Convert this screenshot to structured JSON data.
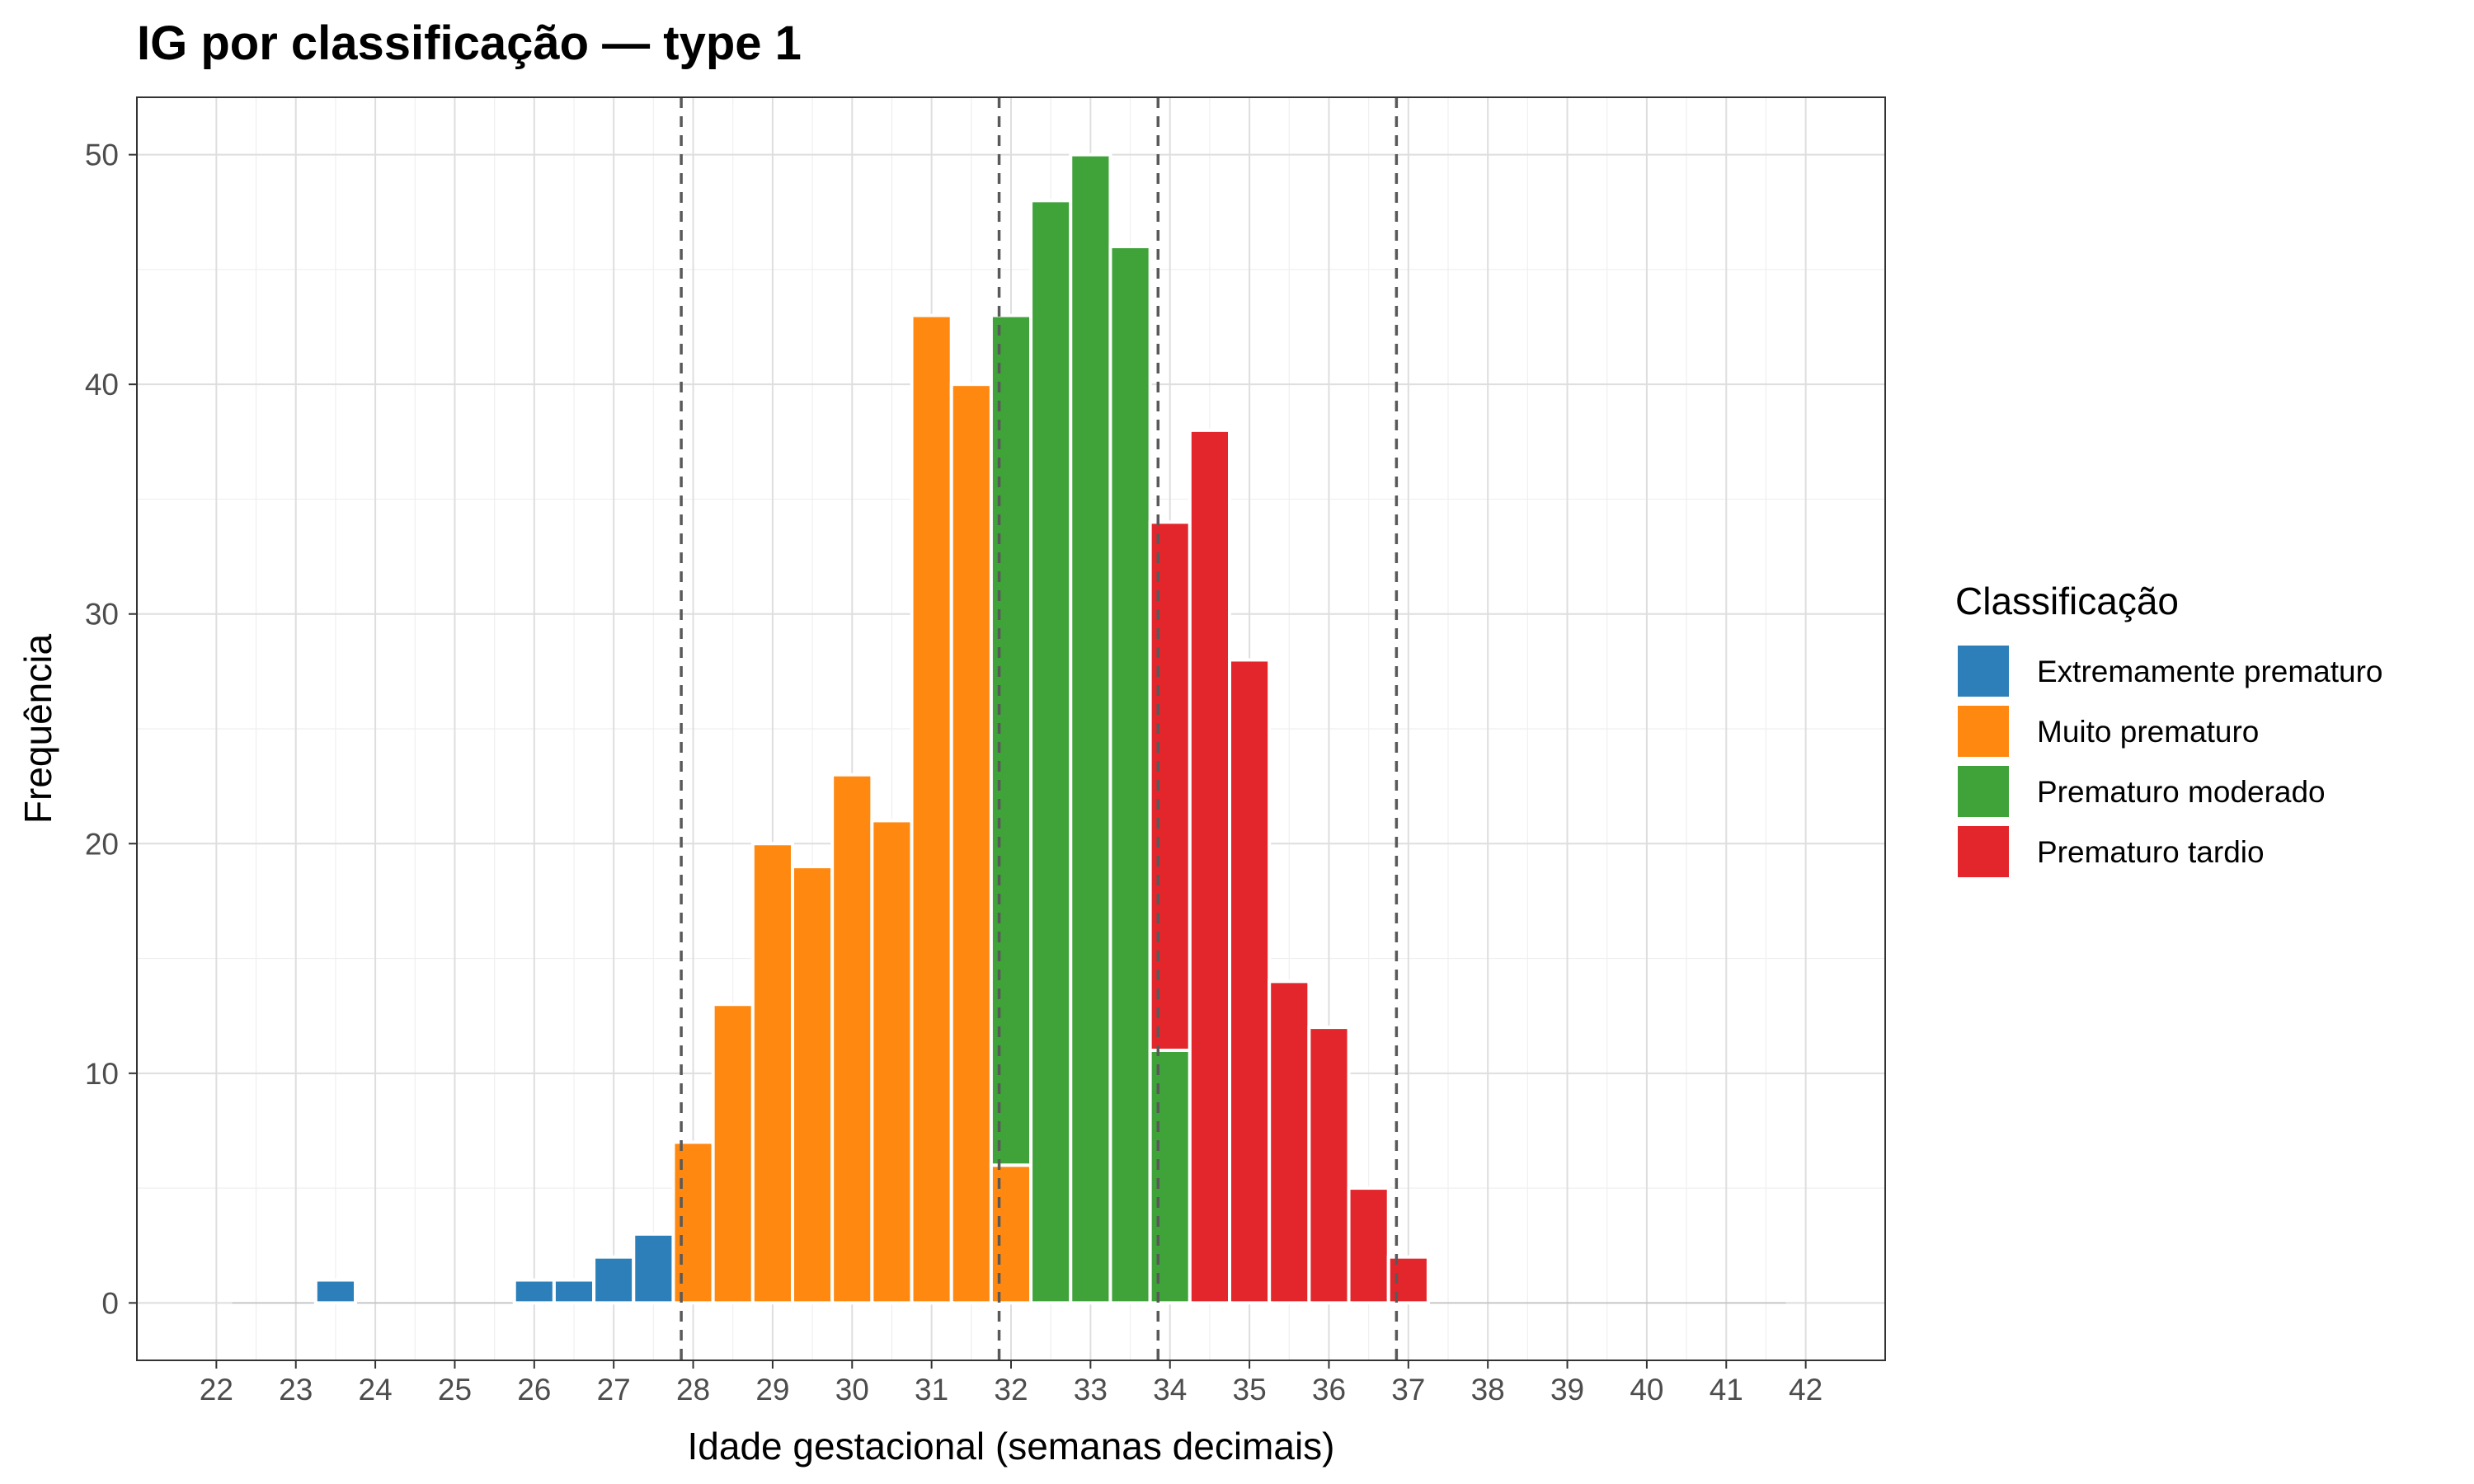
{
  "chart_data": {
    "type": "bar",
    "subtype": "stacked-histogram",
    "title": "IG por classificação — type 1",
    "xlabel": "Idade gestacional (semanas decimais)",
    "ylabel": "Frequência",
    "xlim": [
      21,
      43
    ],
    "ylim": [
      -2.5,
      52.5
    ],
    "x_ticks": [
      22,
      23,
      24,
      25,
      26,
      27,
      28,
      29,
      30,
      31,
      32,
      33,
      34,
      35,
      36,
      37,
      38,
      39,
      40,
      41,
      42
    ],
    "y_ticks": [
      0,
      10,
      20,
      30,
      40,
      50
    ],
    "grid": true,
    "legend_position": "right",
    "legend_title": "Classificação",
    "bin_width": 0.5,
    "reference_lines": [
      27.85,
      31.85,
      33.85,
      36.85
    ],
    "series": [
      {
        "name": "Extremamente prematuro",
        "color": "#2C7FB8",
        "bins": [
          {
            "x0": 23.25,
            "x1": 23.75,
            "value": 1
          },
          {
            "x0": 25.75,
            "x1": 26.25,
            "value": 1
          },
          {
            "x0": 26.25,
            "x1": 26.75,
            "value": 1
          },
          {
            "x0": 26.75,
            "x1": 27.25,
            "value": 2
          },
          {
            "x0": 27.25,
            "x1": 27.75,
            "value": 3
          }
        ]
      },
      {
        "name": "Muito prematuro",
        "color": "#FF8811",
        "bins": [
          {
            "x0": 27.75,
            "x1": 28.25,
            "value": 7
          },
          {
            "x0": 28.25,
            "x1": 28.75,
            "value": 13
          },
          {
            "x0": 28.75,
            "x1": 29.25,
            "value": 20
          },
          {
            "x0": 29.25,
            "x1": 29.75,
            "value": 19
          },
          {
            "x0": 29.75,
            "x1": 30.25,
            "value": 23
          },
          {
            "x0": 30.25,
            "x1": 30.75,
            "value": 21
          },
          {
            "x0": 30.75,
            "x1": 31.25,
            "value": 43
          },
          {
            "x0": 31.25,
            "x1": 31.75,
            "value": 40
          },
          {
            "x0": 31.75,
            "x1": 32.25,
            "value": 6
          }
        ]
      },
      {
        "name": "Prematuro moderado",
        "color": "#3FA33A",
        "bins": [
          {
            "x0": 31.75,
            "x1": 32.25,
            "value": 37
          },
          {
            "x0": 32.25,
            "x1": 32.75,
            "value": 48
          },
          {
            "x0": 32.75,
            "x1": 33.25,
            "value": 50
          },
          {
            "x0": 33.25,
            "x1": 33.75,
            "value": 46
          },
          {
            "x0": 33.75,
            "x1": 34.25,
            "value": 11
          }
        ]
      },
      {
        "name": "Prematuro tardio",
        "color": "#E3262B",
        "bins": [
          {
            "x0": 33.75,
            "x1": 34.25,
            "value": 23
          },
          {
            "x0": 34.25,
            "x1": 34.75,
            "value": 38
          },
          {
            "x0": 34.75,
            "x1": 35.25,
            "value": 28
          },
          {
            "x0": 35.25,
            "x1": 35.75,
            "value": 14
          },
          {
            "x0": 35.75,
            "x1": 36.25,
            "value": 12
          },
          {
            "x0": 36.25,
            "x1": 36.75,
            "value": 5
          },
          {
            "x0": 36.75,
            "x1": 37.25,
            "value": 2
          }
        ]
      }
    ]
  }
}
